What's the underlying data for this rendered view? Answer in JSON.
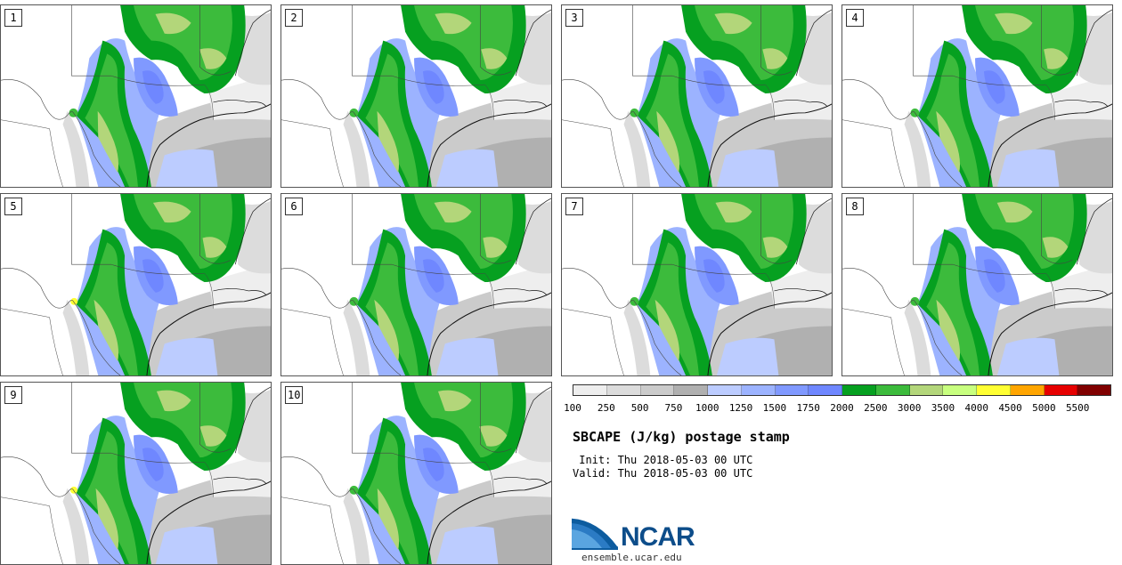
{
  "panels": [
    {
      "label": "1"
    },
    {
      "label": "2"
    },
    {
      "label": "3"
    },
    {
      "label": "4"
    },
    {
      "label": "5"
    },
    {
      "label": "6"
    },
    {
      "label": "7"
    },
    {
      "label": "8"
    },
    {
      "label": "9"
    },
    {
      "label": "10"
    }
  ],
  "colorbar": {
    "colors": [
      "#eeeeee",
      "#dcdcdc",
      "#cbcbcb",
      "#b0b0b0",
      "#bcccff",
      "#9cb3ff",
      "#8099ff",
      "#6f87ff",
      "#06a020",
      "#3cbb3c",
      "#b3d67a",
      "#c8ff7f",
      "#ffff33",
      "#ffa500",
      "#e60000",
      "#800000"
    ],
    "ticks": [
      "100",
      "250",
      "500",
      "750",
      "1000",
      "1250",
      "1500",
      "1750",
      "2000",
      "2500",
      "3000",
      "3500",
      "4000",
      "4500",
      "5000",
      "5500"
    ]
  },
  "title": "SBCAPE (J/kg) postage stamp",
  "init": " Init: Thu 2018-05-03 00 UTC",
  "valid": "Valid: Thu 2018-05-03 00 UTC",
  "logo_text": "NCAR",
  "url": "ensemble.ucar.edu"
}
